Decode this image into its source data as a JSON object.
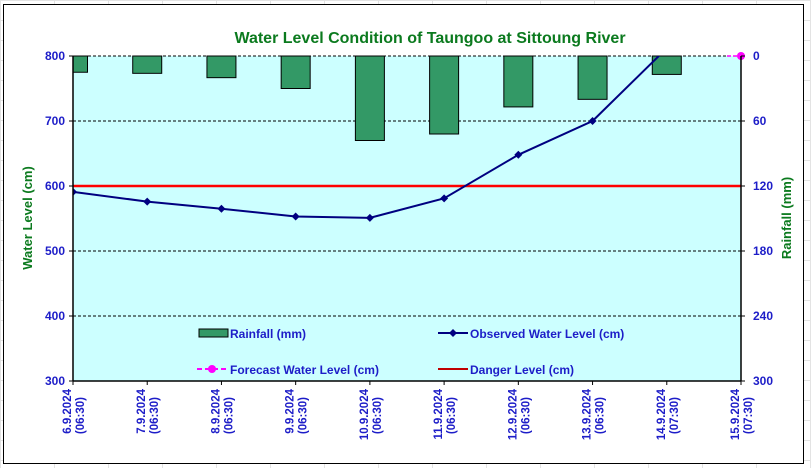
{
  "chart_data": {
    "type": "bar+line",
    "title": "Water Level Condition of Taungoo at  Sittoung River",
    "xlabel": "",
    "ylabel": "Water Level (cm)",
    "y2label": "Rainfall (mm)",
    "categories": [
      "6.9.2024",
      "7.9.2024",
      "8.9.2024",
      "9.9.2024",
      "10.9.2024",
      "11.9.2024",
      "12.9.2024",
      "13.9.2024",
      "14.9.2024",
      "15.9.2024"
    ],
    "category_times": [
      "(06:30)",
      "(06:30)",
      "(06:30)",
      "(06:30)",
      "(06:30)",
      "(06:30)",
      "(06:30)",
      "(06:30)",
      "(07:30)",
      "(07:30)"
    ],
    "ylim": [
      300,
      800
    ],
    "y_ticks": [
      "800",
      "700",
      "600",
      "500",
      "400",
      "300"
    ],
    "y2lim": [
      0,
      300
    ],
    "y2_inverted": true,
    "y2_ticks": [
      "0",
      "60",
      "120",
      "180",
      "240",
      "300"
    ],
    "grid": true,
    "series": [
      {
        "name": "Rainfall (mm)",
        "type": "bar",
        "axis": "y2",
        "color": "#339966",
        "values": [
          15,
          16,
          20,
          30,
          78,
          72,
          47,
          40,
          17,
          null
        ]
      },
      {
        "name": "Observed Water Level (cm)",
        "type": "line",
        "axis": "y",
        "color": "#000080",
        "values": [
          591,
          576,
          565,
          553,
          551,
          581,
          648,
          700,
          812,
          null
        ]
      },
      {
        "name": "Forecast Water Level (cm)",
        "type": "line",
        "axis": "y",
        "color": "#ff00ff",
        "dashed": true,
        "values": [
          null,
          null,
          null,
          null,
          null,
          null,
          null,
          null,
          null,
          800
        ]
      },
      {
        "name": "Danger Level (cm)",
        "type": "line",
        "axis": "y",
        "color": "#ff0000",
        "values": [
          600,
          600,
          600,
          600,
          600,
          600,
          600,
          600,
          600,
          600
        ]
      }
    ],
    "legend": {
      "placement": "bottom-inside",
      "entries": [
        "Rainfall (mm)",
        "Observed Water Level (cm)",
        "Forecast Water Level (cm)",
        "Danger Level (cm)"
      ]
    },
    "colors": {
      "plot_bg": "#ccffff",
      "title": "#0b7a1e",
      "ticks": "#1d1dc8",
      "danger": "#ff0000",
      "observed": "#000080",
      "forecast": "#ff00ff",
      "rain": "#339966"
    }
  }
}
